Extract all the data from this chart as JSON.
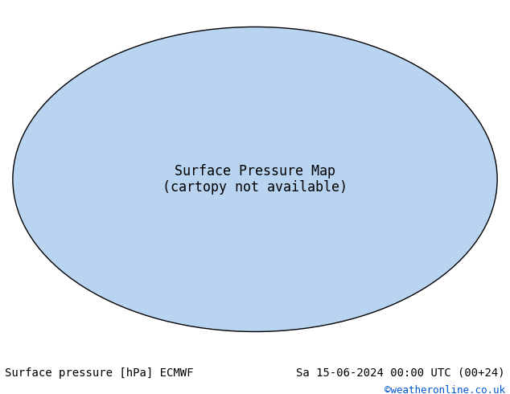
{
  "title_left": "Surface pressure [hPa] ECMWF",
  "title_right": "Sa 15-06-2024 00:00 UTC (00+24)",
  "copyright": "©weatheronline.co.uk",
  "background_color": "#ffffff",
  "footer_bg": "#ffffff",
  "map_bg": "#f0f0f0",
  "land_color": "#c8f0a0",
  "ocean_color": "#b0c8e8",
  "glacier_color": "#d0d0d0",
  "contour_color_low": "#0000cc",
  "contour_color_high": "#cc0000",
  "contour_color_1013": "#000000",
  "label_fontsize": 7,
  "footer_fontsize": 10,
  "copyright_fontsize": 9,
  "copyright_color": "#0055cc"
}
